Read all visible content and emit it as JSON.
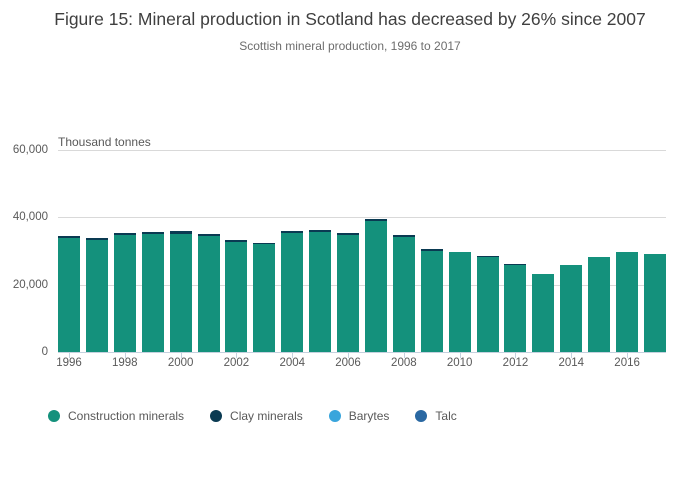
{
  "header": {
    "title": "Figure 15: Mineral production in Scotland has decreased by 26% since 2007",
    "subtitle": "Scottish mineral production, 1996 to 2017"
  },
  "chart_data": {
    "type": "bar",
    "stacked": true,
    "title": "Figure 15: Mineral production in Scotland has decreased by 26% since 2007",
    "subtitle": "Scottish mineral production, 1996 to 2017",
    "ylabel": "Thousand tonnes",
    "xlabel": "",
    "ylim": [
      0,
      60000
    ],
    "yticks": [
      0,
      20000,
      40000,
      60000
    ],
    "ytick_labels": [
      "0",
      "20,000",
      "40,000",
      "60,000"
    ],
    "xtick_every": 2,
    "grid": true,
    "legend_position": "bottom",
    "categories": [
      "1996",
      "1997",
      "1998",
      "1999",
      "2000",
      "2001",
      "2002",
      "2003",
      "2004",
      "2005",
      "2006",
      "2007",
      "2008",
      "2009",
      "2010",
      "2011",
      "2012",
      "2013",
      "2014",
      "2015",
      "2016",
      "2017"
    ],
    "series": [
      {
        "name": "Construction minerals",
        "color": "#14917C",
        "values": [
          33900,
          33400,
          34900,
          35100,
          35200,
          34500,
          32700,
          32000,
          35300,
          35600,
          34700,
          38900,
          34300,
          30100,
          29800,
          28300,
          25700,
          23200,
          25900,
          28200,
          29800,
          29100
        ]
      },
      {
        "name": "Clay minerals",
        "color": "#0A3A52",
        "values": [
          500,
          500,
          600,
          600,
          700,
          600,
          600,
          500,
          600,
          700,
          600,
          600,
          600,
          500,
          0,
          300,
          400,
          0,
          0,
          0,
          0,
          0
        ]
      },
      {
        "name": "Barytes",
        "color": "#39A5DC",
        "values": [
          0,
          0,
          0,
          0,
          0,
          0,
          0,
          0,
          0,
          0,
          0,
          0,
          0,
          0,
          0,
          0,
          0,
          0,
          0,
          0,
          0,
          0
        ]
      },
      {
        "name": "Talc",
        "color": "#2A68A2",
        "values": [
          0,
          0,
          0,
          0,
          0,
          0,
          0,
          0,
          0,
          0,
          0,
          0,
          0,
          0,
          0,
          0,
          0,
          0,
          0,
          0,
          0,
          0
        ]
      }
    ]
  },
  "colors": {
    "background": "#ffffff",
    "title_text": "#3f3f3f",
    "subtitle_text": "#6d6d6d",
    "axis_text": "#595959",
    "gridline": "#d9d9d9",
    "axis_line": "#c5d1de"
  }
}
